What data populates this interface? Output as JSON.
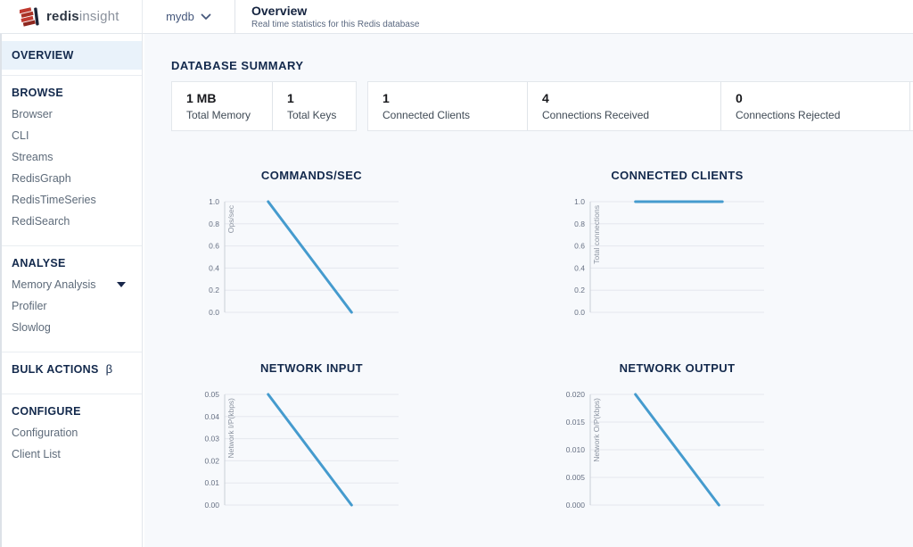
{
  "colors": {
    "accent_blue": "#459bce",
    "navy": "#13294c",
    "logo_red": "#c0392f",
    "active_bg": "#e9f2fa"
  },
  "header": {
    "logo": {
      "bold": "redis",
      "light": "insight"
    },
    "db_selector": {
      "value": "mydb"
    },
    "page": {
      "title": "Overview",
      "subtitle": "Real time statistics for this Redis database"
    }
  },
  "sidebar": {
    "overview_label": "OVERVIEW",
    "browse": {
      "header": "BROWSE",
      "items": [
        "Browser",
        "CLI",
        "Streams",
        "RedisGraph",
        "RedisTimeSeries",
        "RediSearch"
      ]
    },
    "analyse": {
      "header": "ANALYSE",
      "items": [
        "Memory Analysis",
        "Profiler",
        "Slowlog"
      ]
    },
    "bulk": {
      "header": "BULK ACTIONS",
      "beta": "β"
    },
    "configure": {
      "header": "CONFIGURE",
      "items": [
        "Configuration",
        "Client List"
      ]
    }
  },
  "summary": {
    "heading": "DATABASE SUMMARY",
    "cards": [
      {
        "stats": [
          {
            "value": "1 MB",
            "label": "Total Memory"
          },
          {
            "value": "1",
            "label": "Total Keys"
          }
        ]
      },
      {
        "stats": [
          {
            "value": "1",
            "label": "Connected Clients"
          },
          {
            "value": "4",
            "label": "Connections Received"
          },
          {
            "value": "0",
            "label": "Connections Rejected"
          }
        ]
      }
    ]
  },
  "chart_data": [
    {
      "type": "line",
      "title": "COMMANDS/SEC",
      "ylabel": "Ops/sec",
      "ytick_labels": [
        "1.0",
        "0.8",
        "0.6",
        "0.4",
        "0.2",
        "0.0"
      ],
      "ylim": [
        0,
        1.0
      ],
      "grid": true,
      "legend": "none",
      "x_axis_labels": "none",
      "series": [
        {
          "name": "commands-per-sec",
          "x_frac": [
            0.25,
            0.73
          ],
          "y": [
            1.0,
            0.0
          ]
        }
      ],
      "line_color": "#459bce"
    },
    {
      "type": "line",
      "title": "CONNECTED CLIENTS",
      "ylabel": "Total connections",
      "ytick_labels": [
        "1.0",
        "0.8",
        "0.6",
        "0.4",
        "0.2",
        "0.0"
      ],
      "ylim": [
        0,
        1.0
      ],
      "grid": true,
      "legend": "none",
      "x_axis_labels": "none",
      "series": [
        {
          "name": "connected-clients",
          "x_frac": [
            0.26,
            0.76
          ],
          "y": [
            1.0,
            1.0
          ]
        }
      ],
      "line_color": "#459bce"
    },
    {
      "type": "line",
      "title": "NETWORK INPUT",
      "ylabel": "Network I/P(kbps)",
      "ytick_labels": [
        "0.05",
        "0.04",
        "0.03",
        "0.02",
        "0.01",
        "0.00"
      ],
      "ylim": [
        0,
        0.05
      ],
      "grid": true,
      "legend": "none",
      "x_axis_labels": "none",
      "series": [
        {
          "name": "network-input",
          "x_frac": [
            0.25,
            0.73
          ],
          "y": [
            0.05,
            0.0
          ]
        }
      ],
      "line_color": "#459bce"
    },
    {
      "type": "line",
      "title": "NETWORK OUTPUT",
      "ylabel": "Network O/P(kbps)",
      "ytick_labels": [
        "0.020",
        "0.015",
        "0.010",
        "0.005",
        "0.000"
      ],
      "ylim": [
        0,
        0.02
      ],
      "grid": true,
      "legend": "none",
      "x_axis_labels": "none",
      "series": [
        {
          "name": "network-output",
          "x_frac": [
            0.26,
            0.74
          ],
          "y": [
            0.02,
            0.0
          ]
        }
      ],
      "line_color": "#459bce"
    }
  ]
}
